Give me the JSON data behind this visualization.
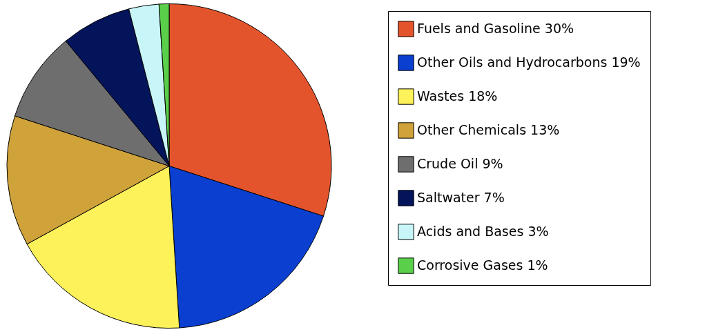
{
  "chart_data": {
    "type": "pie",
    "categories": [
      "Fuels and Gasoline 30%",
      "Other Oils and Hydrocarbons 19%",
      "Wastes 18%",
      "Other Chemicals 13%",
      "Crude Oil 9%",
      "Saltwater 7%",
      "Acids and Bases 3%",
      "Corrosive Gases 1%"
    ],
    "values": [
      30,
      19,
      18,
      13,
      9,
      7,
      3,
      1
    ],
    "colors": [
      "#e4542c",
      "#0a3fd0",
      "#fdf25a",
      "#cfa23a",
      "#6e6e6e",
      "#03145a",
      "#c8f6f8",
      "#5ad04a"
    ],
    "legend": "right"
  }
}
